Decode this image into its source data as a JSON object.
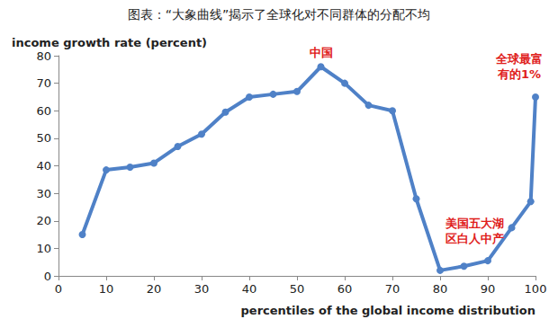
{
  "chart_data": {
    "type": "line",
    "title": "图表：“大象曲线”揭示了全球化对不同群体的分配不均",
    "y_label": "income growth rate (percent)",
    "x_label": "percentiles of the global income distribution",
    "x": [
      5,
      10,
      15,
      20,
      25,
      30,
      35,
      40,
      45,
      50,
      55,
      60,
      65,
      70,
      75,
      80,
      85,
      90,
      95,
      99,
      100
    ],
    "values": [
      15,
      38.5,
      39.5,
      41,
      47,
      51.5,
      59.5,
      65,
      66,
      67,
      76,
      70,
      62,
      60,
      28,
      2,
      3.5,
      5.5,
      17.5,
      27,
      65
    ],
    "color": "#4f81c7",
    "marker": "circle",
    "xlim": [
      0,
      100
    ],
    "xticks": [
      0,
      10,
      20,
      30,
      40,
      50,
      60,
      70,
      80,
      90,
      100
    ],
    "ylim": [
      0,
      80
    ],
    "yticks": [
      0,
      10,
      20,
      30,
      40,
      50,
      60,
      70,
      80
    ],
    "grid": false,
    "annotations": [
      {
        "text": "中国",
        "x": 55,
        "y": 76
      },
      {
        "text": "美国五大湖区白人中产",
        "x": 80,
        "y": 2
      },
      {
        "text": "全球最富有的1%",
        "x": 100,
        "y": 65
      }
    ]
  }
}
